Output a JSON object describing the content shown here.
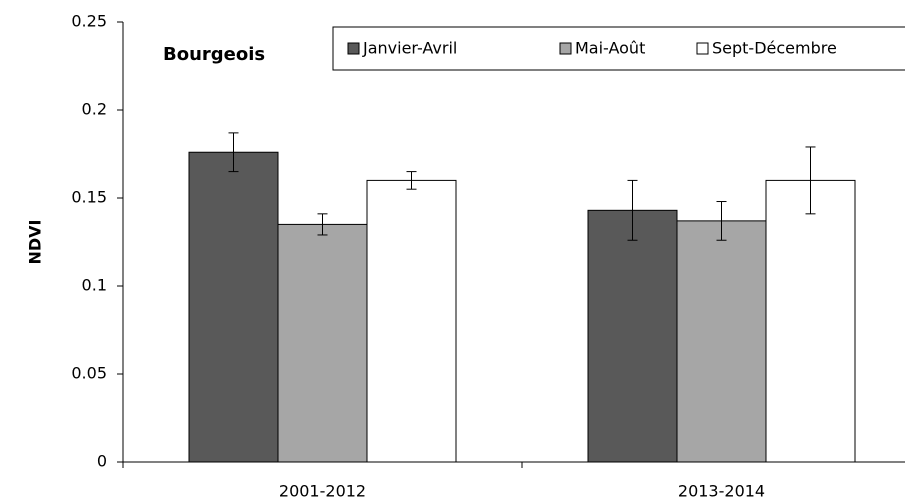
{
  "chart_data": {
    "type": "bar",
    "title": "Bourgeois",
    "ylabel": "NDVI",
    "categories": [
      "2001-2012",
      "2013-2014"
    ],
    "series": [
      {
        "name": "Janvier-Avril",
        "color": "#595959",
        "values": [
          0.176,
          0.143
        ],
        "errors": [
          0.011,
          0.017
        ]
      },
      {
        "name": "Mai-Août",
        "color": "#a6a6a6",
        "values": [
          0.135,
          0.137
        ],
        "errors": [
          0.006,
          0.011
        ]
      },
      {
        "name": "Sept-Décembre",
        "color": "#ffffff",
        "values": [
          0.16,
          0.16
        ],
        "errors": [
          0.005,
          0.019
        ]
      }
    ],
    "ylim": [
      0,
      0.25
    ],
    "yticks": [
      0,
      0.05,
      0.1,
      0.15,
      0.2,
      0.25
    ],
    "grid": false,
    "legend": "top"
  }
}
